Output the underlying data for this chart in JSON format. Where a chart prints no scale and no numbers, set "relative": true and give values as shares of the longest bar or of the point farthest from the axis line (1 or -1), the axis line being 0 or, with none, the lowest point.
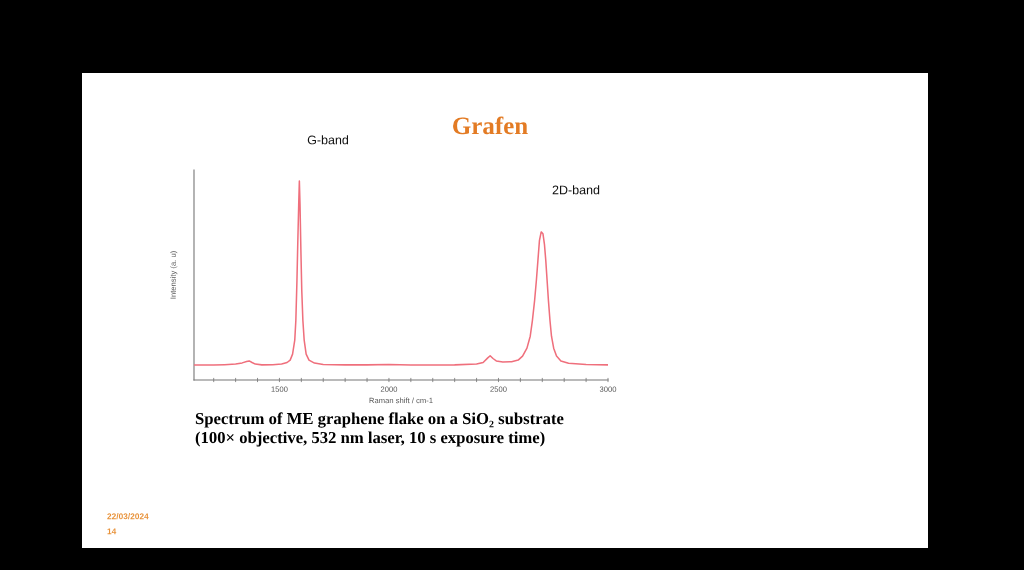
{
  "chart_data": {
    "type": "line",
    "title": "Grafen",
    "xlabel": "Raman shift / cm-1",
    "ylabel": "Intensity (a. u)",
    "relative": true,
    "grid": false,
    "xlim": [
      1110,
      3000
    ],
    "xticks": [
      {
        "value": 1200,
        "label": null
      },
      {
        "value": 1300,
        "label": null
      },
      {
        "value": 1400,
        "label": null
      },
      1500,
      {
        "value": 1600,
        "label": null
      },
      {
        "value": 1700,
        "label": null
      },
      {
        "value": 1800,
        "label": null
      },
      {
        "value": 1900,
        "label": null
      },
      2000,
      {
        "value": 2100,
        "label": null
      },
      {
        "value": 2200,
        "label": null
      },
      {
        "value": 2300,
        "label": null
      },
      {
        "value": 2400,
        "label": null
      },
      2500,
      {
        "value": 2600,
        "label": null
      },
      {
        "value": 2700,
        "label": null
      },
      {
        "value": 2800,
        "label": null
      },
      {
        "value": 2900,
        "label": null
      },
      3000
    ],
    "series": [
      {
        "color": "#ef6f7c",
        "x": [
          1112,
          1200,
          1250,
          1300,
          1330,
          1350,
          1362,
          1375,
          1390,
          1420,
          1470,
          1510,
          1535,
          1549,
          1560,
          1570,
          1575,
          1580,
          1584,
          1588,
          1591,
          1594,
          1598,
          1602,
          1607,
          1613,
          1622,
          1635,
          1660,
          1700,
          1800,
          1900,
          2000,
          2100,
          2200,
          2300,
          2400,
          2430,
          2450,
          2462,
          2475,
          2490,
          2520,
          2560,
          2590,
          2610,
          2630,
          2645,
          2655,
          2665,
          2673,
          2680,
          2687,
          2695,
          2703,
          2710,
          2716,
          2722,
          2728,
          2735,
          2742,
          2752,
          2765,
          2785,
          2820,
          2900,
          3000
        ],
        "values": [
          0.075,
          0.075,
          0.077,
          0.08,
          0.086,
          0.093,
          0.096,
          0.088,
          0.08,
          0.076,
          0.077,
          0.08,
          0.088,
          0.1,
          0.13,
          0.2,
          0.3,
          0.5,
          0.7,
          0.88,
          1.0,
          0.88,
          0.65,
          0.45,
          0.3,
          0.2,
          0.13,
          0.1,
          0.085,
          0.078,
          0.076,
          0.076,
          0.078,
          0.075,
          0.075,
          0.076,
          0.08,
          0.088,
          0.11,
          0.122,
          0.108,
          0.096,
          0.09,
          0.092,
          0.1,
          0.12,
          0.16,
          0.22,
          0.3,
          0.4,
          0.5,
          0.6,
          0.7,
          0.744,
          0.735,
          0.68,
          0.6,
          0.5,
          0.4,
          0.3,
          0.22,
          0.16,
          0.12,
          0.095,
          0.084,
          0.078,
          0.076
        ]
      }
    ],
    "annotations": [
      "G-band",
      "2D-band",
      "Spectrum of ME graphene flake on a SiO₂ substrate",
      "(100× objective, 532 nm laser, 10 s exposure time)",
      "22/03/2024",
      "14"
    ]
  }
}
